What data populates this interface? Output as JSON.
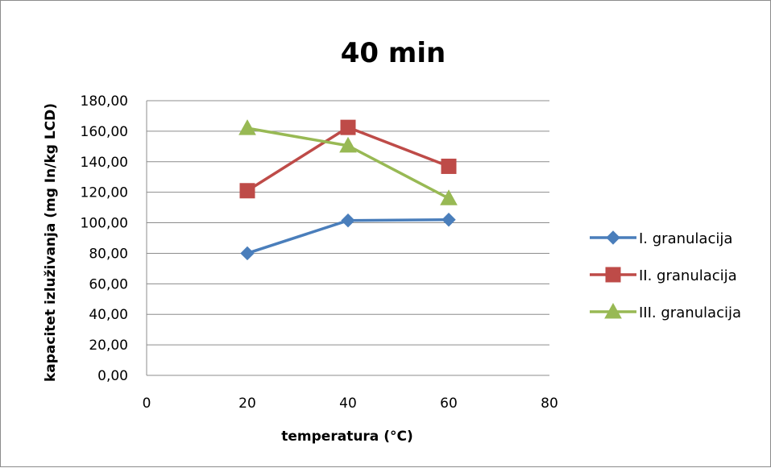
{
  "chart_data": {
    "type": "line",
    "title": "40 min",
    "xlabel": "temperatura (°C)",
    "ylabel": "kapacitet izluživanja (mg In/kg LCD)",
    "xlim": [
      0,
      80
    ],
    "ylim": [
      0,
      180
    ],
    "x_ticks": [
      "0",
      "20",
      "40",
      "60",
      "80"
    ],
    "y_ticks": [
      "0,00",
      "20,00",
      "40,00",
      "60,00",
      "80,00",
      "100,00",
      "120,00",
      "140,00",
      "160,00",
      "180,00"
    ],
    "grid": "horizontal",
    "legend_position": "right",
    "series": [
      {
        "name": "I. granulacija",
        "color": "#4a7ebb",
        "marker": "diamond",
        "x": [
          20,
          40,
          60
        ],
        "y": [
          80,
          101.5,
          102
        ]
      },
      {
        "name": "II. granulacija",
        "color": "#be4b48",
        "marker": "square",
        "x": [
          20,
          40,
          60
        ],
        "y": [
          121,
          162.5,
          137
        ]
      },
      {
        "name": "III. granulacija",
        "color": "#98b954",
        "marker": "triangle",
        "x": [
          20,
          40,
          60
        ],
        "y": [
          162,
          150.5,
          116
        ]
      }
    ]
  }
}
